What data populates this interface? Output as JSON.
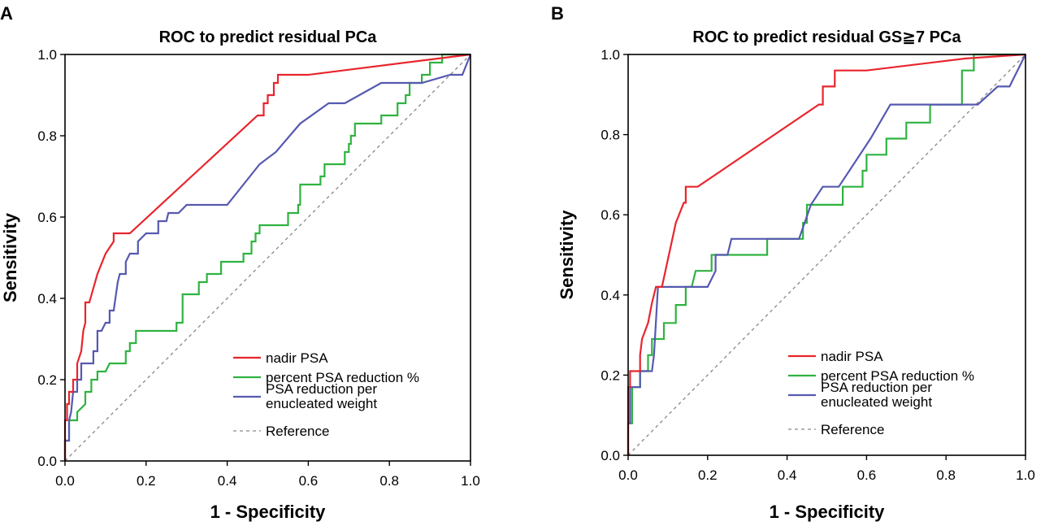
{
  "chart_data": [
    {
      "type": "line",
      "panel_label": "A",
      "title": "ROC to predict residual PCa",
      "xlabel": "1 - Specificity",
      "ylabel": "Sensitivity",
      "xlim": [
        0,
        1
      ],
      "ylim": [
        0,
        1
      ],
      "xticks": [
        "0.0",
        "0.2",
        "0.4",
        "0.6",
        "0.8",
        "1.0"
      ],
      "yticks": [
        "0.0",
        "0.2",
        "0.4",
        "0.6",
        "0.8",
        "1.0"
      ],
      "legend_position": "bottom-right",
      "series": [
        {
          "name": "nadir PSA",
          "color": "#e8252d",
          "dash": "",
          "points": [
            [
              0,
              0
            ],
            [
              0,
              0.1
            ],
            [
              0.005,
              0.1
            ],
            [
              0.005,
              0.14
            ],
            [
              0.01,
              0.14
            ],
            [
              0.01,
              0.17
            ],
            [
              0.02,
              0.17
            ],
            [
              0.02,
              0.2
            ],
            [
              0.03,
              0.2
            ],
            [
              0.03,
              0.24
            ],
            [
              0.04,
              0.27
            ],
            [
              0.045,
              0.32
            ],
            [
              0.05,
              0.34
            ],
            [
              0.05,
              0.39
            ],
            [
              0.06,
              0.39
            ],
            [
              0.08,
              0.46
            ],
            [
              0.1,
              0.51
            ],
            [
              0.12,
              0.54
            ],
            [
              0.12,
              0.56
            ],
            [
              0.16,
              0.56
            ],
            [
              0.475,
              0.85
            ],
            [
              0.49,
              0.85
            ],
            [
              0.49,
              0.88
            ],
            [
              0.5,
              0.88
            ],
            [
              0.5,
              0.9
            ],
            [
              0.515,
              0.9
            ],
            [
              0.515,
              0.93
            ],
            [
              0.525,
              0.93
            ],
            [
              0.525,
              0.95
            ],
            [
              0.6,
              0.95
            ],
            [
              0.92,
              0.99
            ],
            [
              1,
              1
            ]
          ]
        },
        {
          "name": "percent PSA reduction %",
          "color": "#2fb341",
          "dash": "",
          "points": [
            [
              0,
              0
            ],
            [
              0,
              0.05
            ],
            [
              0.01,
              0.05
            ],
            [
              0.01,
              0.1
            ],
            [
              0.03,
              0.1
            ],
            [
              0.03,
              0.12
            ],
            [
              0.05,
              0.14
            ],
            [
              0.05,
              0.17
            ],
            [
              0.065,
              0.17
            ],
            [
              0.065,
              0.2
            ],
            [
              0.08,
              0.2
            ],
            [
              0.08,
              0.22
            ],
            [
              0.1,
              0.22
            ],
            [
              0.11,
              0.24
            ],
            [
              0.15,
              0.24
            ],
            [
              0.15,
              0.27
            ],
            [
              0.16,
              0.27
            ],
            [
              0.16,
              0.29
            ],
            [
              0.175,
              0.29
            ],
            [
              0.175,
              0.32
            ],
            [
              0.275,
              0.32
            ],
            [
              0.275,
              0.34
            ],
            [
              0.29,
              0.34
            ],
            [
              0.29,
              0.41
            ],
            [
              0.33,
              0.41
            ],
            [
              0.33,
              0.44
            ],
            [
              0.35,
              0.44
            ],
            [
              0.35,
              0.46
            ],
            [
              0.385,
              0.46
            ],
            [
              0.385,
              0.49
            ],
            [
              0.44,
              0.49
            ],
            [
              0.44,
              0.51
            ],
            [
              0.46,
              0.51
            ],
            [
              0.46,
              0.54
            ],
            [
              0.47,
              0.54
            ],
            [
              0.47,
              0.56
            ],
            [
              0.48,
              0.56
            ],
            [
              0.48,
              0.58
            ],
            [
              0.55,
              0.58
            ],
            [
              0.55,
              0.61
            ],
            [
              0.575,
              0.61
            ],
            [
              0.575,
              0.63
            ],
            [
              0.58,
              0.63
            ],
            [
              0.58,
              0.68
            ],
            [
              0.63,
              0.68
            ],
            [
              0.63,
              0.7
            ],
            [
              0.64,
              0.7
            ],
            [
              0.64,
              0.73
            ],
            [
              0.69,
              0.73
            ],
            [
              0.69,
              0.76
            ],
            [
              0.7,
              0.76
            ],
            [
              0.7,
              0.78
            ],
            [
              0.705,
              0.78
            ],
            [
              0.705,
              0.8
            ],
            [
              0.715,
              0.8
            ],
            [
              0.715,
              0.83
            ],
            [
              0.78,
              0.83
            ],
            [
              0.78,
              0.85
            ],
            [
              0.82,
              0.85
            ],
            [
              0.82,
              0.88
            ],
            [
              0.84,
              0.88
            ],
            [
              0.84,
              0.9
            ],
            [
              0.85,
              0.9
            ],
            [
              0.85,
              0.93
            ],
            [
              0.88,
              0.93
            ],
            [
              0.88,
              0.95
            ],
            [
              0.88,
              0.95
            ],
            [
              0.9,
              0.95
            ],
            [
              0.9,
              0.98
            ],
            [
              0.93,
              0.98
            ],
            [
              0.93,
              1
            ],
            [
              1,
              1
            ]
          ]
        },
        {
          "name": "PSA reduction per enucleated weight",
          "color": "#5659b0",
          "dash": "",
          "points": [
            [
              0,
              0
            ],
            [
              0,
              0.05
            ],
            [
              0.01,
              0.05
            ],
            [
              0.01,
              0.1
            ],
            [
              0.015,
              0.12
            ],
            [
              0.02,
              0.17
            ],
            [
              0.03,
              0.17
            ],
            [
              0.03,
              0.2
            ],
            [
              0.04,
              0.2
            ],
            [
              0.04,
              0.24
            ],
            [
              0.07,
              0.24
            ],
            [
              0.07,
              0.27
            ],
            [
              0.08,
              0.27
            ],
            [
              0.08,
              0.32
            ],
            [
              0.09,
              0.32
            ],
            [
              0.1,
              0.34
            ],
            [
              0.11,
              0.34
            ],
            [
              0.11,
              0.37
            ],
            [
              0.12,
              0.37
            ],
            [
              0.13,
              0.44
            ],
            [
              0.135,
              0.46
            ],
            [
              0.15,
              0.46
            ],
            [
              0.15,
              0.49
            ],
            [
              0.16,
              0.51
            ],
            [
              0.18,
              0.51
            ],
            [
              0.18,
              0.54
            ],
            [
              0.2,
              0.56
            ],
            [
              0.23,
              0.56
            ],
            [
              0.23,
              0.59
            ],
            [
              0.25,
              0.59
            ],
            [
              0.255,
              0.61
            ],
            [
              0.28,
              0.61
            ],
            [
              0.3,
              0.63
            ],
            [
              0.4,
              0.63
            ],
            [
              0.48,
              0.73
            ],
            [
              0.52,
              0.76
            ],
            [
              0.58,
              0.83
            ],
            [
              0.65,
              0.88
            ],
            [
              0.69,
              0.88
            ],
            [
              0.78,
              0.93
            ],
            [
              0.88,
              0.93
            ],
            [
              0.95,
              0.95
            ],
            [
              0.98,
              0.95
            ],
            [
              1,
              1
            ]
          ]
        },
        {
          "name": "Reference",
          "color": "#888888",
          "dash": "4,4",
          "points": [
            [
              0,
              0
            ],
            [
              1,
              1
            ]
          ]
        }
      ]
    },
    {
      "type": "line",
      "panel_label": "B",
      "title": "ROC to predict residual GS≧7 PCa",
      "xlabel": "1 - Specificity",
      "ylabel": "Sensitivity",
      "xlim": [
        0,
        1
      ],
      "ylim": [
        0,
        1
      ],
      "xticks": [
        "0.0",
        "0.2",
        "0.4",
        "0.6",
        "0.8",
        "1.0"
      ],
      "yticks": [
        "0.0",
        "0.2",
        "0.4",
        "0.6",
        "0.8",
        "1.0"
      ],
      "legend_position": "bottom-right",
      "series": [
        {
          "name": "nadir PSA",
          "color": "#e8252d",
          "dash": "",
          "points": [
            [
              0,
              0
            ],
            [
              0,
              0.17
            ],
            [
              0.005,
              0.17
            ],
            [
              0.005,
              0.21
            ],
            [
              0.03,
              0.21
            ],
            [
              0.03,
              0.25
            ],
            [
              0.035,
              0.29
            ],
            [
              0.05,
              0.33
            ],
            [
              0.06,
              0.38
            ],
            [
              0.07,
              0.42
            ],
            [
              0.085,
              0.42
            ],
            [
              0.12,
              0.58
            ],
            [
              0.14,
              0.63
            ],
            [
              0.145,
              0.63
            ],
            [
              0.145,
              0.67
            ],
            [
              0.175,
              0.67
            ],
            [
              0.48,
              0.875
            ],
            [
              0.49,
              0.875
            ],
            [
              0.49,
              0.92
            ],
            [
              0.52,
              0.92
            ],
            [
              0.52,
              0.96
            ],
            [
              0.6,
              0.96
            ],
            [
              0.85,
              0.99
            ],
            [
              1,
              1
            ]
          ]
        },
        {
          "name": "percent PSA reduction %",
          "color": "#2fb341",
          "dash": "",
          "points": [
            [
              0,
              0
            ],
            [
              0,
              0.08
            ],
            [
              0.01,
              0.08
            ],
            [
              0.01,
              0.17
            ],
            [
              0.03,
              0.17
            ],
            [
              0.03,
              0.21
            ],
            [
              0.05,
              0.21
            ],
            [
              0.05,
              0.25
            ],
            [
              0.06,
              0.25
            ],
            [
              0.06,
              0.29
            ],
            [
              0.09,
              0.29
            ],
            [
              0.09,
              0.33
            ],
            [
              0.1,
              0.33
            ],
            [
              0.12,
              0.33
            ],
            [
              0.12,
              0.375
            ],
            [
              0.145,
              0.375
            ],
            [
              0.145,
              0.42
            ],
            [
              0.16,
              0.42
            ],
            [
              0.17,
              0.46
            ],
            [
              0.21,
              0.46
            ],
            [
              0.21,
              0.5
            ],
            [
              0.29,
              0.5
            ],
            [
              0.35,
              0.5
            ],
            [
              0.35,
              0.54
            ],
            [
              0.44,
              0.54
            ],
            [
              0.44,
              0.58
            ],
            [
              0.45,
              0.58
            ],
            [
              0.45,
              0.625
            ],
            [
              0.54,
              0.625
            ],
            [
              0.54,
              0.67
            ],
            [
              0.59,
              0.67
            ],
            [
              0.59,
              0.71
            ],
            [
              0.6,
              0.71
            ],
            [
              0.6,
              0.75
            ],
            [
              0.65,
              0.75
            ],
            [
              0.65,
              0.79
            ],
            [
              0.7,
              0.79
            ],
            [
              0.7,
              0.83
            ],
            [
              0.76,
              0.83
            ],
            [
              0.76,
              0.875
            ],
            [
              0.84,
              0.875
            ],
            [
              0.84,
              0.96
            ],
            [
              0.87,
              0.96
            ],
            [
              0.87,
              1
            ],
            [
              1,
              1
            ]
          ]
        },
        {
          "name": "PSA reduction per enucleated weight",
          "color": "#5659b0",
          "dash": "",
          "points": [
            [
              0,
              0
            ],
            [
              0,
              0.08
            ],
            [
              0.005,
              0.08
            ],
            [
              0.005,
              0.17
            ],
            [
              0.03,
              0.17
            ],
            [
              0.03,
              0.21
            ],
            [
              0.06,
              0.21
            ],
            [
              0.065,
              0.25
            ],
            [
              0.075,
              0.42
            ],
            [
              0.2,
              0.42
            ],
            [
              0.22,
              0.46
            ],
            [
              0.22,
              0.5
            ],
            [
              0.25,
              0.5
            ],
            [
              0.26,
              0.54
            ],
            [
              0.43,
              0.54
            ],
            [
              0.46,
              0.625
            ],
            [
              0.49,
              0.67
            ],
            [
              0.53,
              0.67
            ],
            [
              0.61,
              0.79
            ],
            [
              0.66,
              0.875
            ],
            [
              0.88,
              0.875
            ],
            [
              0.93,
              0.92
            ],
            [
              0.96,
              0.92
            ],
            [
              1,
              1
            ]
          ]
        },
        {
          "name": "Reference",
          "color": "#888888",
          "dash": "4,4",
          "points": [
            [
              0,
              0
            ],
            [
              1,
              1
            ]
          ]
        }
      ]
    }
  ]
}
